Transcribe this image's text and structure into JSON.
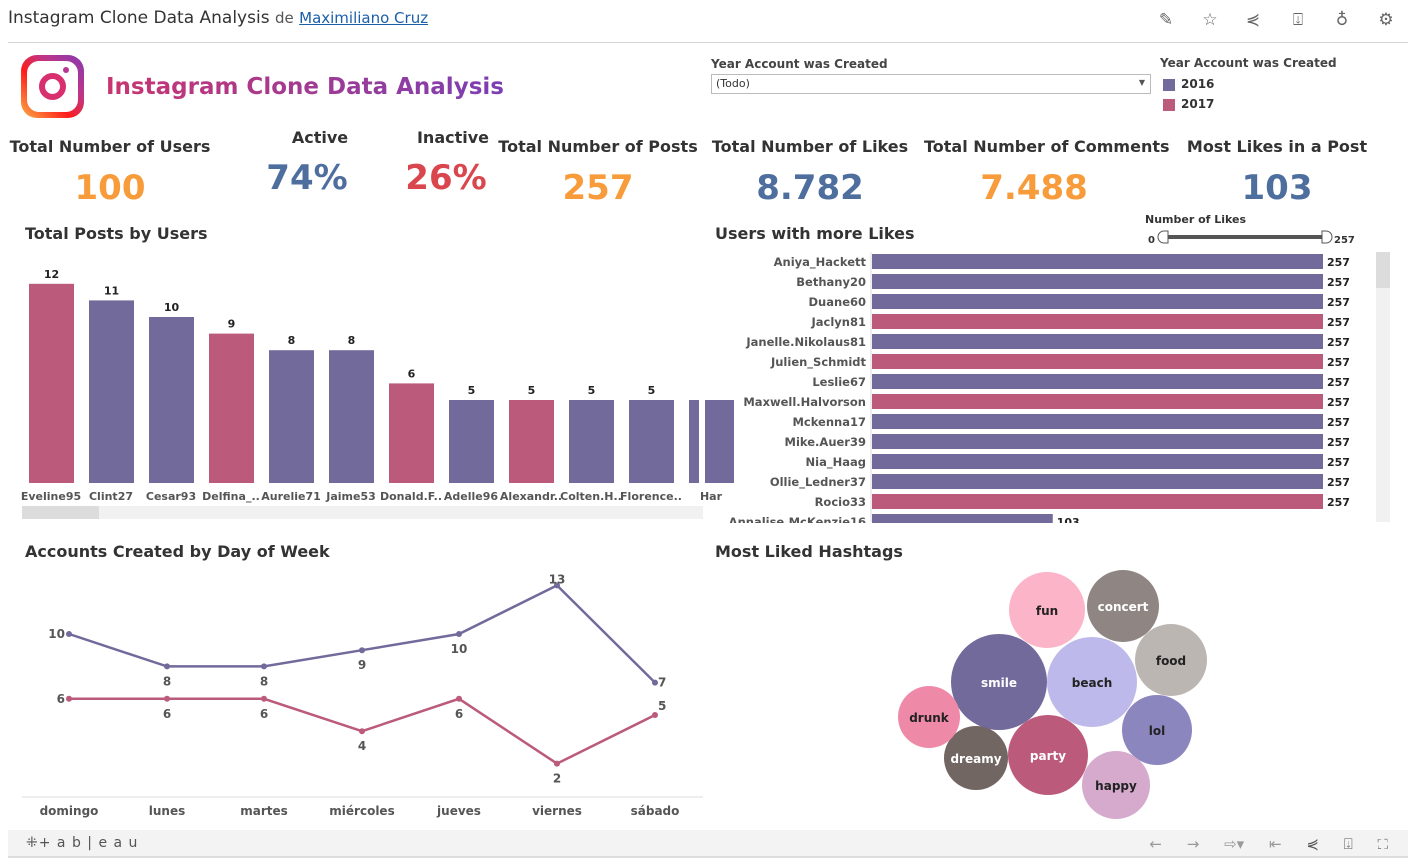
{
  "header": {
    "title": "Instagram Clone Data Analysis",
    "by": "de",
    "author": "Maximiliano Cruz",
    "icons": [
      "edit-icon",
      "star-icon",
      "share-icon",
      "download-icon",
      "badge-icon",
      "gear-icon"
    ]
  },
  "dashboard": {
    "title": "Instagram Clone Data Analysis",
    "filter": {
      "label": "Year Account was Created",
      "value": "(Todo)"
    },
    "legend": {
      "title": "Year Account was Created",
      "items": [
        {
          "label": "2016",
          "color": "#736a9c"
        },
        {
          "label": "2017",
          "color": "#bb5a7a"
        }
      ]
    }
  },
  "kpis": [
    {
      "label": "Total Number of Users",
      "value": "100",
      "color": "#f89b3b"
    },
    {
      "label": "Active",
      "value": "74%",
      "color": "#4e6e9e"
    },
    {
      "label": "Inactive",
      "value": "26%",
      "color": "#d9464d"
    },
    {
      "label": "Total Number of Posts",
      "value": "257",
      "color": "#f89b3b"
    },
    {
      "label": "Total Number of Likes",
      "value": "8.782",
      "color": "#4e6e9e"
    },
    {
      "label": "Total Number of Comments",
      "value": "7.488",
      "color": "#f89b3b"
    },
    {
      "label": "Most Likes in a Post",
      "value": "103",
      "color": "#4e6e9e"
    }
  ],
  "chart_data": [
    {
      "type": "bar",
      "title": "Total Posts by Users",
      "categories": [
        "Eveline95",
        "Clint27",
        "Cesar93",
        "Delfina_..",
        "Aurelie71",
        "Jaime53",
        "Donald.F..",
        "Adelle96",
        "Alexandr..",
        "Colten.H..",
        "Florence..",
        "Har"
      ],
      "values": [
        12,
        11,
        10,
        9,
        8,
        8,
        6,
        5,
        5,
        5,
        5,
        null
      ],
      "year": [
        "2017",
        "2016",
        "2016",
        "2017",
        "2016",
        "2016",
        "2017",
        "2016",
        "2017",
        "2016",
        "2016",
        "2016"
      ]
    },
    {
      "type": "bar",
      "orientation": "horizontal",
      "title": "Users with more Likes",
      "categories": [
        "Aniya_Hackett",
        "Bethany20",
        "Duane60",
        "Jaclyn81",
        "Janelle.Nikolaus81",
        "Julien_Schmidt",
        "Leslie67",
        "Maxwell.Halvorson",
        "Mckenna17",
        "Mike.Auer39",
        "Nia_Haag",
        "Ollie_Ledner37",
        "Rocio33",
        "Annalise.McKenzie16"
      ],
      "values": [
        257,
        257,
        257,
        257,
        257,
        257,
        257,
        257,
        257,
        257,
        257,
        257,
        257,
        103
      ],
      "year": [
        "2016",
        "2016",
        "2016",
        "2017",
        "2016",
        "2017",
        "2016",
        "2017",
        "2016",
        "2016",
        "2016",
        "2016",
        "2017",
        "2016"
      ],
      "slider": {
        "label": "Number of Likes",
        "min": "0",
        "max": "257"
      }
    },
    {
      "type": "line",
      "title": "Accounts Created by Day of Week",
      "categories": [
        "domingo",
        "lunes",
        "martes",
        "miércoles",
        "jueves",
        "viernes",
        "sábado"
      ],
      "series": [
        {
          "name": "2016",
          "color": "#736a9c",
          "values": [
            10,
            8,
            8,
            9,
            10,
            13,
            7
          ]
        },
        {
          "name": "2017",
          "color": "#bb5a7a",
          "values": [
            6,
            6,
            6,
            4,
            6,
            2,
            5
          ]
        }
      ]
    },
    {
      "type": "bubble",
      "title": "Most Liked Hashtags",
      "items": [
        {
          "label": "smile",
          "color": "#736a9c",
          "text": "#fff"
        },
        {
          "label": "beach",
          "color": "#bdb9ea",
          "text": "#222"
        },
        {
          "label": "party",
          "color": "#bb5a7a",
          "text": "#fff"
        },
        {
          "label": "fun",
          "color": "#fbb4c8",
          "text": "#222"
        },
        {
          "label": "concert",
          "color": "#8f8683",
          "text": "#fff"
        },
        {
          "label": "food",
          "color": "#bcb6b3",
          "text": "#222"
        },
        {
          "label": "lol",
          "color": "#8c86be",
          "text": "#222"
        },
        {
          "label": "happy",
          "color": "#d5aacd",
          "text": "#222"
        },
        {
          "label": "dreamy",
          "color": "#726663",
          "text": "#fff"
        },
        {
          "label": "drunk",
          "color": "#ee8aa8",
          "text": "#222"
        }
      ]
    }
  ],
  "footer": {
    "brand": "+ a b | e a u",
    "icons": [
      "undo-icon",
      "redo-icon",
      "revert-icon",
      "reset-icon",
      "share-icon",
      "download-icon",
      "fullscreen-icon"
    ]
  }
}
